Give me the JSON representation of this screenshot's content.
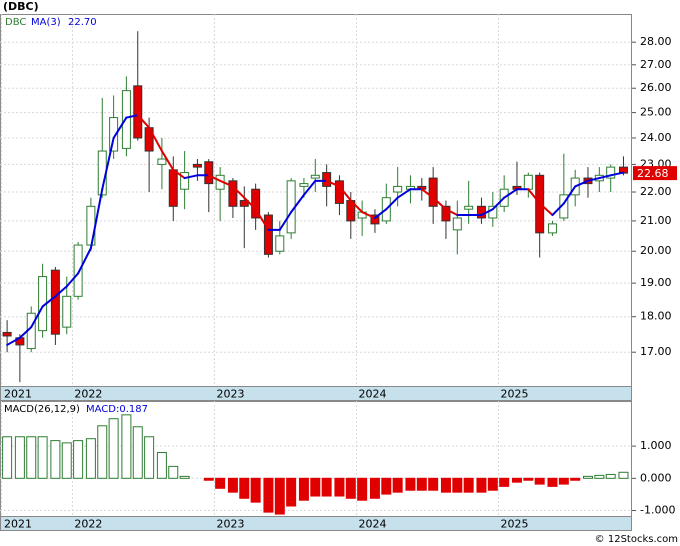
{
  "title": "(DBC)",
  "footer": "© 12Stocks.com",
  "chart_data": [
    {
      "type": "candlestick",
      "symbol": "DBC",
      "log_scale": true,
      "grid": true,
      "up_color": "#2e7d32",
      "down_color": "#e00000",
      "x": [
        2021.54,
        2021.63,
        2021.71,
        2021.79,
        2021.88,
        2021.96,
        2022.04,
        2022.13,
        2022.21,
        2022.29,
        2022.38,
        2022.46,
        2022.54,
        2022.63,
        2022.71,
        2022.79,
        2022.88,
        2022.96,
        2023.04,
        2023.13,
        2023.21,
        2023.29,
        2023.38,
        2023.46,
        2023.54,
        2023.63,
        2023.71,
        2023.79,
        2023.88,
        2023.96,
        2024.04,
        2024.13,
        2024.21,
        2024.29,
        2024.38,
        2024.46,
        2024.54,
        2024.63,
        2024.71,
        2024.79,
        2024.88,
        2024.96,
        2025.04,
        2025.13,
        2025.21,
        2025.29,
        2025.38,
        2025.46,
        2025.54,
        2025.63,
        2025.71,
        2025.79,
        2025.88
      ],
      "open": [
        17.55,
        17.4,
        17.1,
        17.6,
        19.4,
        17.7,
        18.6,
        20.2,
        21.9,
        23.5,
        23.6,
        26.1,
        24.4,
        23.0,
        22.8,
        22.1,
        23.0,
        23.1,
        22.1,
        22.4,
        21.7,
        22.1,
        21.2,
        20.0,
        20.6,
        22.2,
        22.5,
        22.7,
        22.4,
        21.7,
        21.1,
        21.2,
        21.0,
        22.0,
        22.1,
        22.2,
        22.5,
        21.5,
        20.7,
        21.4,
        21.5,
        21.1,
        21.5,
        22.2,
        22.1,
        22.6,
        20.6,
        21.1,
        21.9,
        22.5,
        22.4,
        22.5,
        22.9
      ],
      "high": [
        17.9,
        17.5,
        18.3,
        19.6,
        19.5,
        19.2,
        20.3,
        21.8,
        25.6,
        25.7,
        26.5,
        28.5,
        24.8,
        24.0,
        23.3,
        23.5,
        23.2,
        23.2,
        22.9,
        22.5,
        22.2,
        22.3,
        21.3,
        21.0,
        22.5,
        22.5,
        23.2,
        23.0,
        22.6,
        22.0,
        21.7,
        21.4,
        22.3,
        22.9,
        22.6,
        22.5,
        22.9,
        21.7,
        21.7,
        22.4,
        21.8,
        22.0,
        22.6,
        23.1,
        22.7,
        22.7,
        21.0,
        23.4,
        22.8,
        22.9,
        22.9,
        23.0,
        23.3
      ],
      "low": [
        17.0,
        16.2,
        17.0,
        17.4,
        17.2,
        17.5,
        18.5,
        20.0,
        21.8,
        23.2,
        23.3,
        23.9,
        22.0,
        22.1,
        21.0,
        21.4,
        22.4,
        21.3,
        21.0,
        21.1,
        20.1,
        20.7,
        19.8,
        19.9,
        20.4,
        21.8,
        22.0,
        21.5,
        21.2,
        20.4,
        20.5,
        20.6,
        20.9,
        21.5,
        21.6,
        21.7,
        20.9,
        20.4,
        19.9,
        20.9,
        20.9,
        20.8,
        21.3,
        21.9,
        21.8,
        19.8,
        20.5,
        21.0,
        21.5,
        21.8,
        22.0,
        22.0,
        22.6
      ],
      "close": [
        17.45,
        17.2,
        18.1,
        19.2,
        17.5,
        18.6,
        20.2,
        21.5,
        23.5,
        24.8,
        25.9,
        24.0,
        23.5,
        23.2,
        21.5,
        22.7,
        22.9,
        22.3,
        22.6,
        21.5,
        21.5,
        21.1,
        19.9,
        20.5,
        22.4,
        22.3,
        22.6,
        22.2,
        21.6,
        21.0,
        21.3,
        20.9,
        21.8,
        22.2,
        22.2,
        22.1,
        21.5,
        21.0,
        21.1,
        21.5,
        21.1,
        21.5,
        22.1,
        22.1,
        22.6,
        20.6,
        20.9,
        21.9,
        22.5,
        22.3,
        22.6,
        22.9,
        22.68
      ],
      "last_price_label": "22.68",
      "ma": {
        "name": "MA(3)",
        "up_color": "#0000dd",
        "down_color": "#e00000",
        "last_value_label": "22.70",
        "values": [
          17.2,
          17.4,
          17.7,
          18.3,
          18.6,
          18.9,
          19.3,
          20.1,
          22.1,
          24.0,
          24.8,
          24.9,
          24.4,
          23.5,
          22.8,
          22.5,
          22.6,
          22.6,
          22.4,
          22.2,
          21.8,
          21.4,
          20.7,
          20.7,
          21.3,
          21.9,
          22.4,
          22.4,
          22.2,
          21.7,
          21.3,
          21.1,
          21.4,
          21.8,
          22.1,
          22.1,
          21.8,
          21.4,
          21.2,
          21.2,
          21.2,
          21.4,
          21.8,
          22.1,
          22.1,
          21.6,
          21.2,
          21.6,
          22.2,
          22.4,
          22.5,
          22.6,
          22.7
        ]
      },
      "xlim": [
        2021.49,
        2025.94
      ],
      "xticks": [
        {
          "value": 2021.5,
          "label": "2021"
        },
        {
          "value": 2022,
          "label": "2022"
        },
        {
          "value": 2023,
          "label": "2023"
        },
        {
          "value": 2024,
          "label": "2024"
        },
        {
          "value": 2025,
          "label": "2025"
        }
      ],
      "ylim": [
        16.1,
        29.3
      ],
      "yticks": [
        {
          "value": 17,
          "label": "17.00"
        },
        {
          "value": 18,
          "label": "18.00"
        },
        {
          "value": 19,
          "label": "19.00"
        },
        {
          "value": 20,
          "label": "20.00"
        },
        {
          "value": 21,
          "label": "21.00"
        },
        {
          "value": 22,
          "label": "22.00"
        },
        {
          "value": 23,
          "label": "23.00"
        },
        {
          "value": 24,
          "label": "24.00"
        },
        {
          "value": 25,
          "label": "25.00"
        },
        {
          "value": 26,
          "label": "26.00"
        },
        {
          "value": 27,
          "label": "27.00"
        },
        {
          "value": 28,
          "label": "28.00"
        }
      ]
    },
    {
      "type": "bar",
      "name": "MACD(26,12,9)",
      "last_value_label": "MACD:0.187",
      "grid": true,
      "up_color": "#2e7d32",
      "down_color": "#e00000",
      "x": [
        2021.54,
        2021.63,
        2021.71,
        2021.79,
        2021.88,
        2021.96,
        2022.04,
        2022.13,
        2022.21,
        2022.29,
        2022.38,
        2022.46,
        2022.54,
        2022.63,
        2022.71,
        2022.79,
        2022.88,
        2022.96,
        2023.04,
        2023.13,
        2023.21,
        2023.29,
        2023.38,
        2023.46,
        2023.54,
        2023.63,
        2023.71,
        2023.79,
        2023.88,
        2023.96,
        2024.04,
        2024.13,
        2024.21,
        2024.29,
        2024.38,
        2024.46,
        2024.54,
        2024.63,
        2024.71,
        2024.79,
        2024.88,
        2024.96,
        2025.04,
        2025.13,
        2025.21,
        2025.29,
        2025.38,
        2025.46,
        2025.54,
        2025.63,
        2025.71,
        2025.79,
        2025.88
      ],
      "values": [
        1.29,
        1.29,
        1.29,
        1.29,
        1.17,
        1.1,
        1.17,
        1.23,
        1.63,
        1.85,
        1.97,
        1.6,
        1.29,
        0.8,
        0.37,
        0.06,
        0.0,
        -0.06,
        -0.31,
        -0.43,
        -0.62,
        -0.74,
        -1.05,
        -1.11,
        -0.86,
        -0.68,
        -0.55,
        -0.55,
        -0.55,
        -0.62,
        -0.68,
        -0.62,
        -0.49,
        -0.43,
        -0.37,
        -0.37,
        -0.37,
        -0.43,
        -0.43,
        -0.43,
        -0.43,
        -0.37,
        -0.25,
        -0.12,
        -0.06,
        -0.18,
        -0.25,
        -0.18,
        -0.06,
        0.06,
        0.09,
        0.12,
        0.187
      ],
      "xlim": [
        2021.49,
        2025.94
      ],
      "xticks": [
        {
          "value": 2021.5,
          "label": "2021"
        },
        {
          "value": 2022,
          "label": "2022"
        },
        {
          "value": 2023,
          "label": "2023"
        },
        {
          "value": 2024,
          "label": "2024"
        },
        {
          "value": 2025,
          "label": "2025"
        }
      ],
      "ylim": [
        -1.17,
        2.4
      ],
      "yticks": [
        {
          "value": 1,
          "label": "1.000"
        },
        {
          "value": 0,
          "label": "0.000"
        },
        {
          "value": -1,
          "label": "-1.000"
        }
      ]
    }
  ]
}
